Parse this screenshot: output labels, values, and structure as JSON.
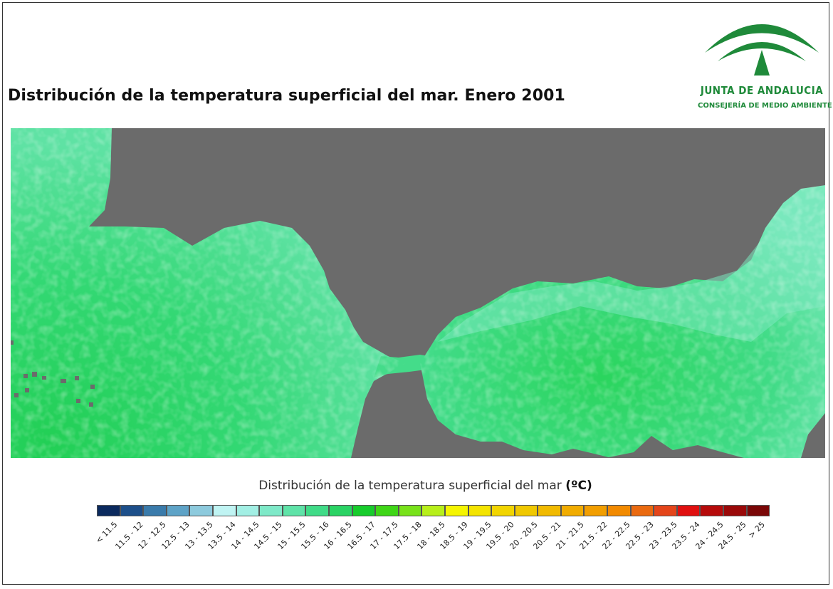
{
  "title": "Distribución de la temperatura superficial del mar. Enero 2001",
  "logo": {
    "name": "JUNTA DE ANDALUCIA",
    "subtitle": "CONSEJERÍA DE MEDIO AMBIENTE",
    "color": "#1f8a3a"
  },
  "map": {
    "land_color": "#6b6b6b",
    "sea_colors": [
      "#29d36a",
      "#3fdd84",
      "#57e19a",
      "#7ce9bd"
    ]
  },
  "legend": {
    "title": "Distribución de la temperatura superficial del mar",
    "unit": "(ºC)",
    "classes": [
      {
        "label": "< 11.5",
        "color": "#0b2a5e"
      },
      {
        "label": "11.5 - 12",
        "color": "#1d4f8a"
      },
      {
        "label": "12 - 12.5",
        "color": "#3a7bab"
      },
      {
        "label": "12.5 - 13",
        "color": "#5ea3c7"
      },
      {
        "label": "13 - 13.5",
        "color": "#8dcadd"
      },
      {
        "label": "13.5 - 14",
        "color": "#c0f4f3"
      },
      {
        "label": "14 - 14.5",
        "color": "#a2efe4"
      },
      {
        "label": "14.5 - 15",
        "color": "#7ee9c8"
      },
      {
        "label": "15 - 15.5",
        "color": "#5fe3a8"
      },
      {
        "label": "15.5 - 16",
        "color": "#40db87"
      },
      {
        "label": "16 - 16.5",
        "color": "#2ad364"
      },
      {
        "label": "16.5 - 17",
        "color": "#17cc2c"
      },
      {
        "label": "17 - 17.5",
        "color": "#3fd617"
      },
      {
        "label": "17.5 - 18",
        "color": "#78e21a"
      },
      {
        "label": "18 - 18.5",
        "color": "#b7ef1a"
      },
      {
        "label": "18.5 - 19",
        "color": "#f5f500"
      },
      {
        "label": "19 - 19.5",
        "color": "#f4e400"
      },
      {
        "label": "19.5 - 20",
        "color": "#f2d500"
      },
      {
        "label": "20 - 20.5",
        "color": "#f0c800"
      },
      {
        "label": "20.5 - 21",
        "color": "#f1ba00"
      },
      {
        "label": "21 - 21.5",
        "color": "#f1ac00"
      },
      {
        "label": "21.5 - 22",
        "color": "#f29e00"
      },
      {
        "label": "22 - 22.5",
        "color": "#f28a00"
      },
      {
        "label": "22.5 - 23",
        "color": "#ea6a10"
      },
      {
        "label": "23 - 23.5",
        "color": "#e4451a"
      },
      {
        "label": "23.5 - 24",
        "color": "#e01010"
      },
      {
        "label": "24 - 24.5",
        "color": "#b60b0b"
      },
      {
        "label": "24.5 - 25",
        "color": "#9a0909"
      },
      {
        "label": "> 25",
        "color": "#7a0707"
      }
    ]
  }
}
